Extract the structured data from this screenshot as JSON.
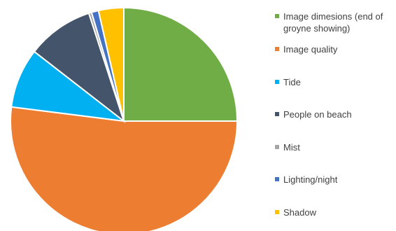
{
  "chart_data": {
    "type": "pie",
    "categories": [
      "Image dimesions (end of groyne showing)",
      "Image quality",
      "Tide",
      "People on beach",
      "Mist",
      "Lighting/night",
      "Shadow"
    ],
    "values": [
      25,
      52,
      8.5,
      9.5,
      0.4,
      1,
      3.6
    ],
    "colors": [
      "#70AD47",
      "#ED7D31",
      "#00B0F0",
      "#44546A",
      "#A5A5A5",
      "#4472C4",
      "#FFC000"
    ],
    "start_angle_deg": 0,
    "direction": "clockwise",
    "legend_position": "right"
  }
}
